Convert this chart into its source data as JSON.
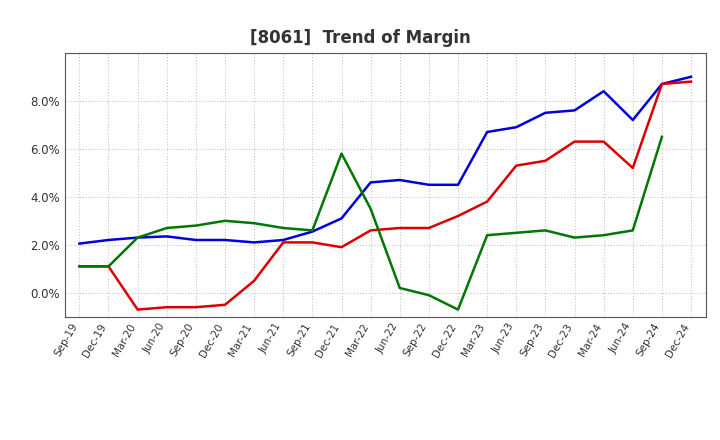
{
  "title": "[8061]  Trend of Margin",
  "x_labels": [
    "Sep-19",
    "Dec-19",
    "Mar-20",
    "Jun-20",
    "Sep-20",
    "Dec-20",
    "Mar-21",
    "Jun-21",
    "Sep-21",
    "Dec-21",
    "Mar-22",
    "Jun-22",
    "Sep-22",
    "Dec-22",
    "Mar-23",
    "Jun-23",
    "Sep-23",
    "Dec-23",
    "Mar-24",
    "Jun-24",
    "Sep-24",
    "Dec-24"
  ],
  "ordinary_income": [
    2.05,
    2.2,
    2.3,
    2.35,
    2.2,
    2.2,
    2.1,
    2.2,
    2.55,
    3.1,
    4.6,
    4.7,
    4.5,
    4.5,
    6.7,
    6.9,
    7.5,
    7.6,
    8.4,
    7.2,
    8.7,
    9.0
  ],
  "net_income": [
    1.1,
    1.1,
    -0.7,
    -0.6,
    -0.6,
    -0.5,
    0.5,
    2.1,
    2.1,
    1.9,
    2.6,
    2.7,
    2.7,
    3.2,
    3.8,
    5.3,
    5.5,
    6.3,
    6.3,
    5.2,
    8.7,
    8.8
  ],
  "operating_cashflow": [
    1.1,
    1.1,
    2.3,
    2.7,
    2.8,
    3.0,
    2.9,
    2.7,
    2.6,
    5.8,
    3.5,
    0.2,
    -0.1,
    -0.7,
    2.4,
    2.5,
    2.6,
    2.3,
    2.4,
    2.6,
    6.5,
    null
  ],
  "ylim": [
    -1.0,
    10.0
  ],
  "yticks": [
    0.0,
    2.0,
    4.0,
    6.0,
    8.0
  ],
  "colors": {
    "ordinary_income": "#0000dd",
    "net_income": "#dd0000",
    "operating_cashflow": "#007700"
  },
  "background_color": "#ffffff",
  "grid_color": "#bbbbbb",
  "line_width": 1.8
}
